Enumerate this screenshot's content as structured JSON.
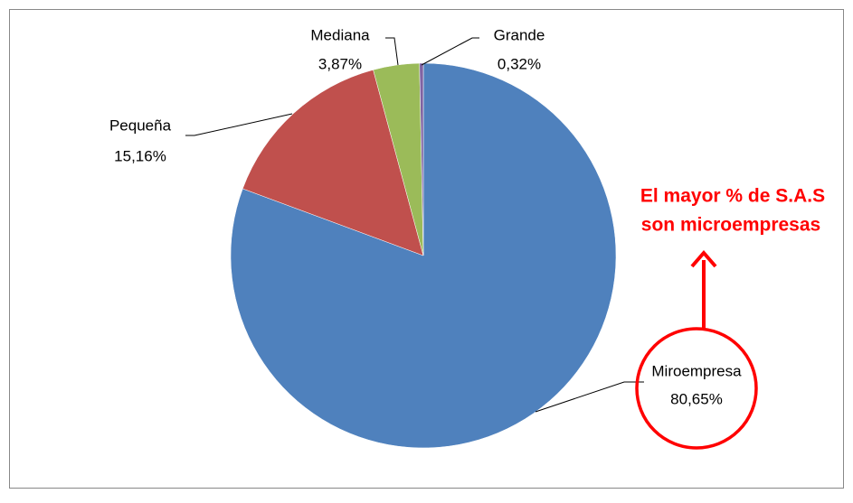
{
  "chart_data": {
    "type": "pie",
    "categories": [
      "Miroempresa",
      "Pequeña",
      "Mediana",
      "Grande"
    ],
    "values": [
      80.65,
      15.16,
      3.87,
      0.32
    ],
    "value_labels": [
      "80,65%",
      "15,16%",
      "3,87%",
      "0,32%"
    ],
    "colors": [
      "#4f81bd",
      "#c0504d",
      "#9bbb59",
      "#8064a2"
    ],
    "annotation": [
      "El mayor % de S.A.S",
      "son microempresas"
    ]
  }
}
